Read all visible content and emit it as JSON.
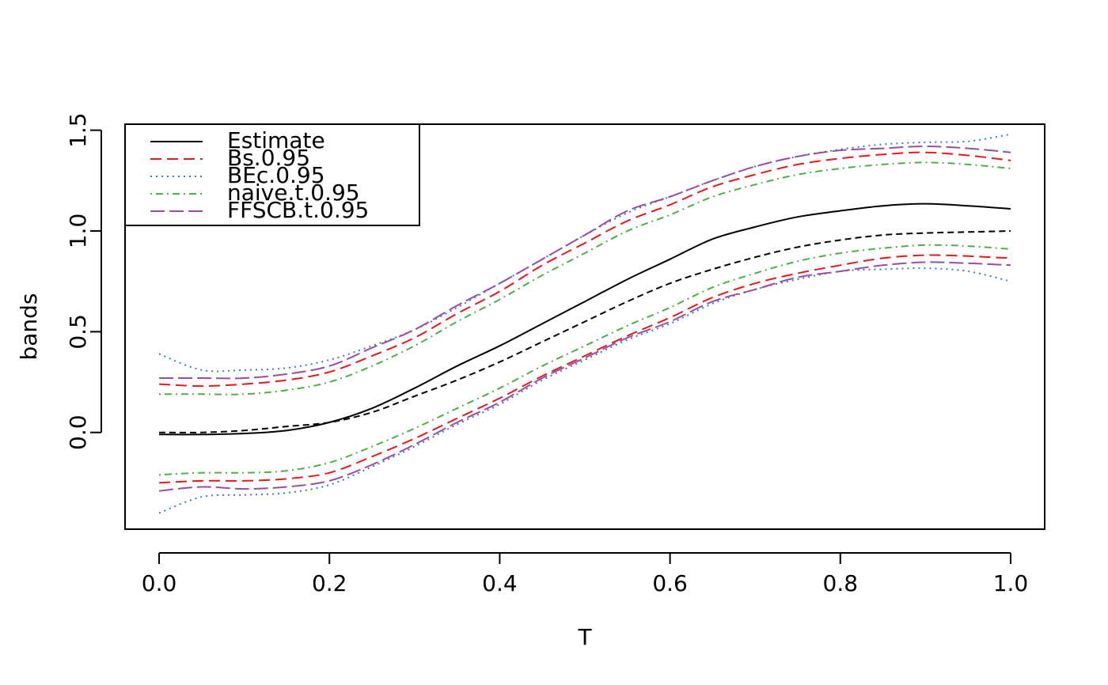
{
  "chart_data": {
    "type": "line",
    "title": "",
    "xlabel": "T",
    "ylabel": "bands",
    "xlim": [
      -0.04,
      1.04
    ],
    "ylim": [
      -0.48,
      1.53
    ],
    "xticks": [
      0,
      0.2,
      0.4,
      0.6,
      0.8,
      1
    ],
    "xtick_labels": [
      "0.0",
      "0.2",
      "0.4",
      "0.6",
      "0.8",
      "1.0"
    ],
    "yticks": [
      0,
      0.5,
      1,
      1.5
    ],
    "ytick_labels": [
      "0.0",
      "0.5",
      "1.0",
      "1.5"
    ],
    "legend_position": "top-left",
    "legend": [
      {
        "label": "Estimate",
        "color": "#000000",
        "dash": "solid"
      },
      {
        "label": "Bs.0.95",
        "color": "#e41a1c",
        "dash": "dashed"
      },
      {
        "label": "BEc.0.95",
        "color": "#377eb8",
        "dash": "dotted"
      },
      {
        "label": "naive.t.0.95",
        "color": "#4daf4a",
        "dash": "dotdash"
      },
      {
        "label": "FFSCB.t.0.95",
        "color": "#984ea3",
        "dash": "longdash"
      }
    ],
    "x": [
      0,
      0.05,
      0.1,
      0.15,
      0.2,
      0.25,
      0.3,
      0.35,
      0.4,
      0.45,
      0.5,
      0.55,
      0.6,
      0.65,
      0.7,
      0.75,
      0.8,
      0.85,
      0.9,
      0.95,
      1.0
    ],
    "series": [
      {
        "legend": 0,
        "color": "#000000",
        "dash": "solid",
        "values": [
          -0.01,
          -0.01,
          -0.005,
          0.01,
          0.05,
          0.12,
          0.22,
          0.33,
          0.43,
          0.54,
          0.65,
          0.76,
          0.86,
          0.96,
          1.02,
          1.07,
          1.1,
          1.125,
          1.135,
          1.125,
          1.11
        ]
      },
      {
        "legend": null,
        "color": "#000000",
        "dash": "shortdash",
        "values": [
          0,
          0,
          0.01,
          0.03,
          0.05,
          0.1,
          0.18,
          0.26,
          0.35,
          0.45,
          0.55,
          0.65,
          0.74,
          0.81,
          0.87,
          0.92,
          0.955,
          0.98,
          0.99,
          0.995,
          1.0
        ]
      },
      {
        "legend": 1,
        "color": "#e41a1c",
        "dash": "dashed",
        "values": [
          0.24,
          0.23,
          0.24,
          0.26,
          0.3,
          0.38,
          0.47,
          0.59,
          0.7,
          0.83,
          0.94,
          1.05,
          1.13,
          1.22,
          1.28,
          1.33,
          1.36,
          1.38,
          1.39,
          1.375,
          1.35
        ]
      },
      {
        "legend": 1,
        "color": "#e41a1c",
        "dash": "dashed",
        "values": [
          -0.25,
          -0.24,
          -0.24,
          -0.23,
          -0.2,
          -0.12,
          -0.03,
          0.07,
          0.17,
          0.28,
          0.38,
          0.48,
          0.57,
          0.67,
          0.74,
          0.79,
          0.83,
          0.865,
          0.88,
          0.875,
          0.865
        ]
      },
      {
        "legend": 2,
        "color": "#377eb8",
        "dash": "dotted",
        "values": [
          0.39,
          0.31,
          0.31,
          0.32,
          0.36,
          0.43,
          0.51,
          0.62,
          0.74,
          0.86,
          0.98,
          1.09,
          1.17,
          1.25,
          1.32,
          1.37,
          1.405,
          1.43,
          1.44,
          1.445,
          1.48
        ]
      },
      {
        "legend": 2,
        "color": "#377eb8",
        "dash": "dotted",
        "values": [
          -0.4,
          -0.32,
          -0.31,
          -0.3,
          -0.26,
          -0.17,
          -0.07,
          0.04,
          0.14,
          0.26,
          0.36,
          0.46,
          0.54,
          0.64,
          0.71,
          0.76,
          0.8,
          0.81,
          0.815,
          0.8,
          0.75
        ]
      },
      {
        "legend": 3,
        "color": "#4daf4a",
        "dash": "dotdash",
        "values": [
          0.19,
          0.19,
          0.19,
          0.21,
          0.25,
          0.33,
          0.43,
          0.55,
          0.66,
          0.78,
          0.89,
          1.0,
          1.08,
          1.17,
          1.23,
          1.28,
          1.31,
          1.33,
          1.34,
          1.33,
          1.31
        ]
      },
      {
        "legend": 3,
        "color": "#4daf4a",
        "dash": "dotdash",
        "values": [
          -0.21,
          -0.2,
          -0.2,
          -0.19,
          -0.15,
          -0.07,
          0.02,
          0.12,
          0.22,
          0.33,
          0.43,
          0.53,
          0.62,
          0.72,
          0.79,
          0.85,
          0.89,
          0.915,
          0.93,
          0.925,
          0.91
        ]
      },
      {
        "legend": 4,
        "color": "#984ea3",
        "dash": "longdash",
        "values": [
          0.27,
          0.27,
          0.27,
          0.29,
          0.33,
          0.42,
          0.51,
          0.63,
          0.74,
          0.86,
          0.98,
          1.1,
          1.17,
          1.25,
          1.32,
          1.37,
          1.4,
          1.41,
          1.42,
          1.41,
          1.39
        ]
      },
      {
        "legend": 4,
        "color": "#984ea3",
        "dash": "longdash",
        "values": [
          -0.29,
          -0.27,
          -0.28,
          -0.27,
          -0.24,
          -0.16,
          -0.06,
          0.05,
          0.15,
          0.27,
          0.37,
          0.47,
          0.55,
          0.65,
          0.71,
          0.77,
          0.8,
          0.83,
          0.845,
          0.84,
          0.83
        ]
      }
    ]
  }
}
